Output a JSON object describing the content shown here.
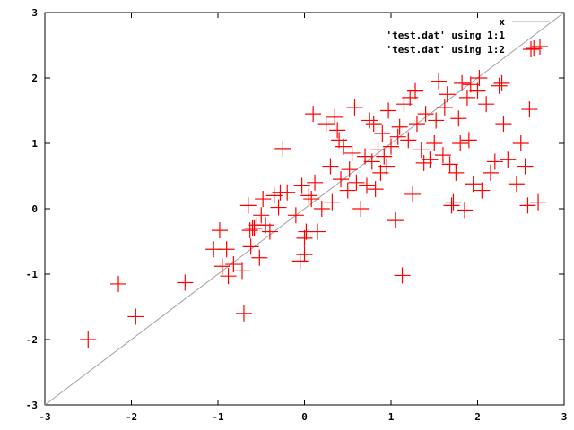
{
  "colors": {
    "series": "#ff0000",
    "axis": "#000000",
    "diagonal": "#a0a0a0"
  },
  "chart_data": {
    "type": "scatter",
    "xlim": [
      -3,
      3
    ],
    "ylim": [
      -3,
      3
    ],
    "x_ticks": [
      "-3",
      "-2",
      "-1",
      "0",
      "1",
      "2",
      "3"
    ],
    "y_ticks": [
      "-3",
      "-2",
      "-1",
      "0",
      "1",
      "2",
      "3"
    ],
    "grid": false,
    "legend_position": "top-right",
    "series": [
      {
        "name": "x",
        "type": "line",
        "points": [
          [
            -3,
            -3
          ],
          [
            3,
            3
          ]
        ]
      },
      {
        "name": "'test.dat' using 1:1",
        "type": "points",
        "points": []
      },
      {
        "name": "'test.dat' using 1:2",
        "type": "points",
        "marker": "plus",
        "points": [
          [
            -2.5,
            -2.0
          ],
          [
            -2.15,
            -1.15
          ],
          [
            -1.95,
            -1.65
          ],
          [
            -1.38,
            -1.13
          ],
          [
            -1.05,
            -0.62
          ],
          [
            -0.98,
            -0.33
          ],
          [
            -0.95,
            -0.88
          ],
          [
            -0.9,
            -0.62
          ],
          [
            -0.88,
            -1.03
          ],
          [
            -0.82,
            -0.85
          ],
          [
            -0.72,
            -0.95
          ],
          [
            -0.7,
            -1.6
          ],
          [
            -0.65,
            0.05
          ],
          [
            -0.63,
            -0.33
          ],
          [
            -0.62,
            -0.58
          ],
          [
            -0.6,
            -0.3
          ],
          [
            -0.58,
            -0.3
          ],
          [
            -0.55,
            -0.25
          ],
          [
            -0.52,
            -0.75
          ],
          [
            -0.5,
            -0.1
          ],
          [
            -0.48,
            0.15
          ],
          [
            -0.45,
            -0.25
          ],
          [
            -0.4,
            -0.35
          ],
          [
            -0.35,
            0.2
          ],
          [
            -0.3,
            0.02
          ],
          [
            -0.28,
            0.25
          ],
          [
            -0.25,
            0.92
          ],
          [
            -0.2,
            0.25
          ],
          [
            -0.1,
            -0.1
          ],
          [
            -0.05,
            -0.8
          ],
          [
            -0.03,
            0.35
          ],
          [
            0.0,
            -0.45
          ],
          [
            0.0,
            -0.7
          ],
          [
            0.02,
            -0.35
          ],
          [
            0.05,
            0.2
          ],
          [
            0.08,
            0.15
          ],
          [
            0.1,
            1.45
          ],
          [
            0.12,
            0.4
          ],
          [
            0.15,
            -0.35
          ],
          [
            0.2,
            0.0
          ],
          [
            0.25,
            1.3
          ],
          [
            0.3,
            0.65
          ],
          [
            0.32,
            0.1
          ],
          [
            0.35,
            1.4
          ],
          [
            0.38,
            1.2
          ],
          [
            0.4,
            1.05
          ],
          [
            0.42,
            0.45
          ],
          [
            0.45,
            0.95
          ],
          [
            0.5,
            0.28
          ],
          [
            0.52,
            0.6
          ],
          [
            0.55,
            0.85
          ],
          [
            0.58,
            1.55
          ],
          [
            0.6,
            0.4
          ],
          [
            0.65,
            0.0
          ],
          [
            0.7,
            0.8
          ],
          [
            0.72,
            0.35
          ],
          [
            0.75,
            1.35
          ],
          [
            0.78,
            0.72
          ],
          [
            0.8,
            1.3
          ],
          [
            0.82,
            0.3
          ],
          [
            0.85,
            0.9
          ],
          [
            0.88,
            0.55
          ],
          [
            0.9,
            1.15
          ],
          [
            0.92,
            0.8
          ],
          [
            0.95,
            0.65
          ],
          [
            0.97,
            1.5
          ],
          [
            1.0,
            0.95
          ],
          [
            1.05,
            -0.18
          ],
          [
            1.08,
            1.1
          ],
          [
            1.1,
            1.25
          ],
          [
            1.13,
            -1.02
          ],
          [
            1.15,
            1.6
          ],
          [
            1.2,
            1.05
          ],
          [
            1.22,
            1.7
          ],
          [
            1.25,
            0.22
          ],
          [
            1.28,
            1.8
          ],
          [
            1.3,
            1.3
          ],
          [
            1.35,
            0.9
          ],
          [
            1.38,
            0.7
          ],
          [
            1.4,
            1.45
          ],
          [
            1.45,
            0.75
          ],
          [
            1.5,
            1.0
          ],
          [
            1.52,
            1.35
          ],
          [
            1.55,
            1.95
          ],
          [
            1.6,
            0.82
          ],
          [
            1.62,
            1.55
          ],
          [
            1.65,
            1.75
          ],
          [
            1.68,
            0.68
          ],
          [
            1.7,
            0.05
          ],
          [
            1.72,
            0.1
          ],
          [
            1.75,
            0.55
          ],
          [
            1.78,
            1.38
          ],
          [
            1.8,
            1.0
          ],
          [
            1.82,
            1.92
          ],
          [
            1.85,
            -0.02
          ],
          [
            1.88,
            1.7
          ],
          [
            1.9,
            1.05
          ],
          [
            1.92,
            1.9
          ],
          [
            1.95,
            0.38
          ],
          [
            2.0,
            1.8
          ],
          [
            2.02,
            2.0
          ],
          [
            2.05,
            0.28
          ],
          [
            2.1,
            1.6
          ],
          [
            2.15,
            0.55
          ],
          [
            2.2,
            0.72
          ],
          [
            2.25,
            1.88
          ],
          [
            2.28,
            1.92
          ],
          [
            2.3,
            1.3
          ],
          [
            2.35,
            0.75
          ],
          [
            2.45,
            0.38
          ],
          [
            2.5,
            1.0
          ],
          [
            2.55,
            0.65
          ],
          [
            2.58,
            0.05
          ],
          [
            2.6,
            1.52
          ],
          [
            2.65,
            2.45
          ],
          [
            2.7,
            0.1
          ],
          [
            2.72,
            2.48
          ]
        ]
      }
    ]
  }
}
